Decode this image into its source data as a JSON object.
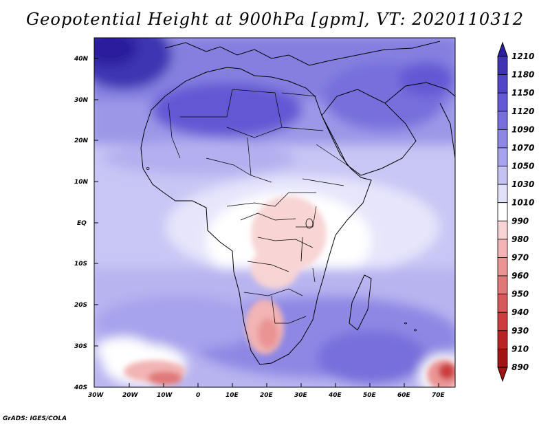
{
  "title": "Geopotential Height at 900hPa [gpm], VT: 2020110312",
  "credit": "GrADS: IGES/COLA",
  "lat_labels": [
    "40N",
    "30N",
    "20N",
    "10N",
    "EQ",
    "10S",
    "20S",
    "30S",
    "40S"
  ],
  "lon_labels": [
    "30W",
    "20W",
    "10W",
    "0",
    "10E",
    "20E",
    "30E",
    "40E",
    "50E",
    "60E",
    "70E"
  ],
  "colorbar": {
    "levels": [
      "1210",
      "1180",
      "1150",
      "1120",
      "1090",
      "1070",
      "1050",
      "1030",
      "1010",
      "990",
      "980",
      "970",
      "960",
      "950",
      "940",
      "930",
      "910",
      "890"
    ],
    "colors": [
      "#2a1f9c",
      "#3e34b2",
      "#5045c6",
      "#6359d4",
      "#7770dc",
      "#8e88e4",
      "#a7a3ec",
      "#c4c2f3",
      "#e2e1fa",
      "#ffffff",
      "#f8d4d4",
      "#f2b4b4",
      "#ea9494",
      "#e07878",
      "#d65a5a",
      "#cc3e3e",
      "#b82424",
      "#a01414"
    ]
  },
  "colors": {
    "ocean_base": "#c8c6f4",
    "border": "#000000"
  }
}
